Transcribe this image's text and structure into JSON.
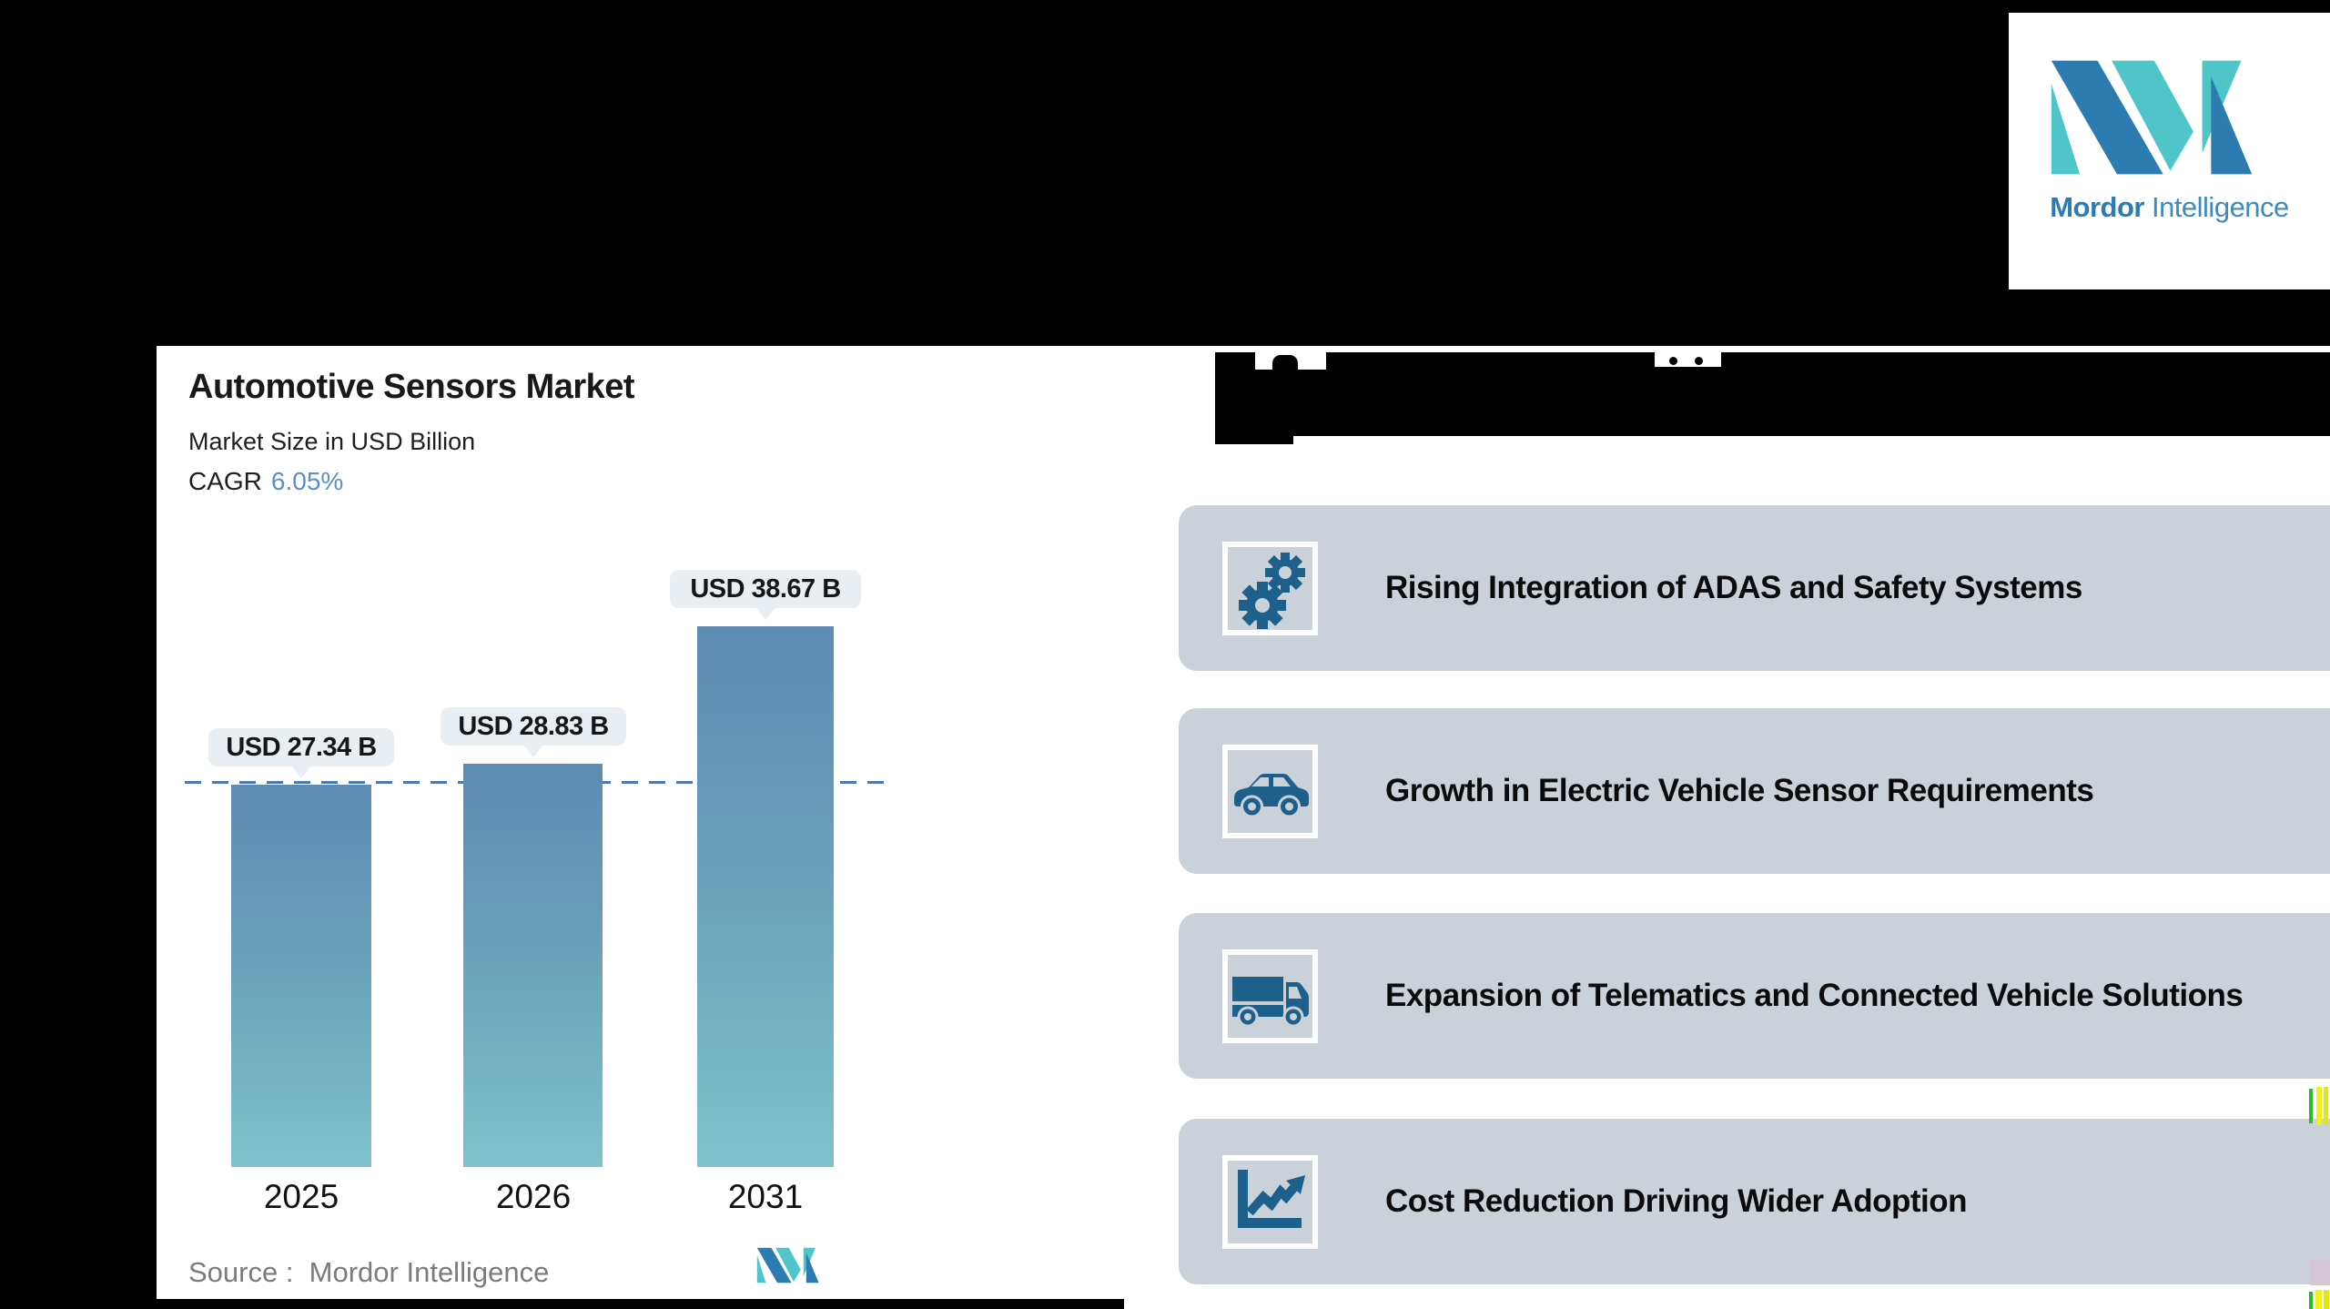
{
  "logo": {
    "brand_bold": "Mordor",
    "brand_regular": "Intelligence",
    "mark_icon": "mordor-intelligence-mi-mark-icon"
  },
  "chart_panel": {
    "title": "Automotive Sensors Market",
    "subtitle": "Market Size in USD Billion",
    "cagr_label": "CAGR",
    "cagr_value": "6.05%",
    "source_label": "Source :  Mordor Intelligence"
  },
  "chart_data": {
    "type": "bar",
    "title": "Automotive Sensors Market",
    "subtitle": "Market Size in USD Billion",
    "cagr": "6.05%",
    "categories": [
      "2025",
      "2026",
      "2031"
    ],
    "values": [
      27.34,
      28.83,
      38.67
    ],
    "bar_labels": [
      "USD 27.34 B",
      "USD 28.83 B",
      "USD 38.67 B"
    ],
    "reference_line_value": 27.34,
    "ylabel": "Market Size in USD Billion",
    "xlabel": "",
    "gridlines": false,
    "legend": false,
    "source": "Source :  Mordor Intelligence"
  },
  "drivers_panel": {
    "title_state": "redacted",
    "items": [
      {
        "icon": "gears-icon",
        "label": "Rising Integration of ADAS and Safety Systems"
      },
      {
        "icon": "car-icon",
        "label": "Growth in Electric Vehicle Sensor Requirements"
      },
      {
        "icon": "truck-icon",
        "label": "Expansion of Telematics and Connected Vehicle Solutions"
      },
      {
        "icon": "line-chart-icon",
        "label": "Cost Reduction Driving Wider Adoption"
      }
    ]
  },
  "colors": {
    "accent_blue": "#5b8fc5",
    "bar_gradient_top": "#5d8bb4",
    "bar_gradient_bottom": "#7fc2cb",
    "dashed_line": "#4d7aa8",
    "bubble_bg": "#e8eef1",
    "card_gray": "#cbd1d9",
    "icon_blue": "#1d608c",
    "brand_blue": "#2d7cb1",
    "brand_teal": "#4fc5ca",
    "source_gray": "#7b7b7b"
  }
}
